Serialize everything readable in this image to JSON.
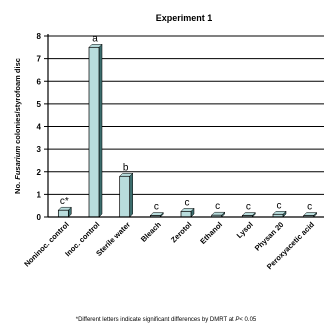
{
  "chart_data": {
    "type": "bar",
    "title": "Experiment 1",
    "ylabel_parts": [
      "No. ",
      "Fusarium",
      " colonies/styrofoam disc"
    ],
    "ylim": [
      0,
      8
    ],
    "yticks": [
      "0",
      "1",
      "2",
      "3",
      "4",
      "5",
      "6",
      "7",
      "8"
    ],
    "grid": true,
    "categories": [
      "Noninoc. control",
      "Inoc. control",
      "Sterile water",
      "Bleach",
      "Zerotol",
      "Ethanol",
      "Lysol",
      "Physan 20",
      "Peroxyacetic acid"
    ],
    "values": [
      0.3,
      7.5,
      1.8,
      0.0,
      0.25,
      0.08,
      0.0,
      0.12,
      0.0
    ],
    "letters": [
      "c*",
      "a",
      "b",
      "c",
      "c",
      "c",
      "c",
      "c",
      "c"
    ],
    "colors": {
      "bar": "#b8dcdc",
      "bar_side": "#3c6e6e",
      "axis": "#000000",
      "grid": "#000000"
    }
  },
  "footnote_parts": [
    "*Different letters indicate significant differences by DMRT at ",
    "P",
    "< 0.05"
  ]
}
